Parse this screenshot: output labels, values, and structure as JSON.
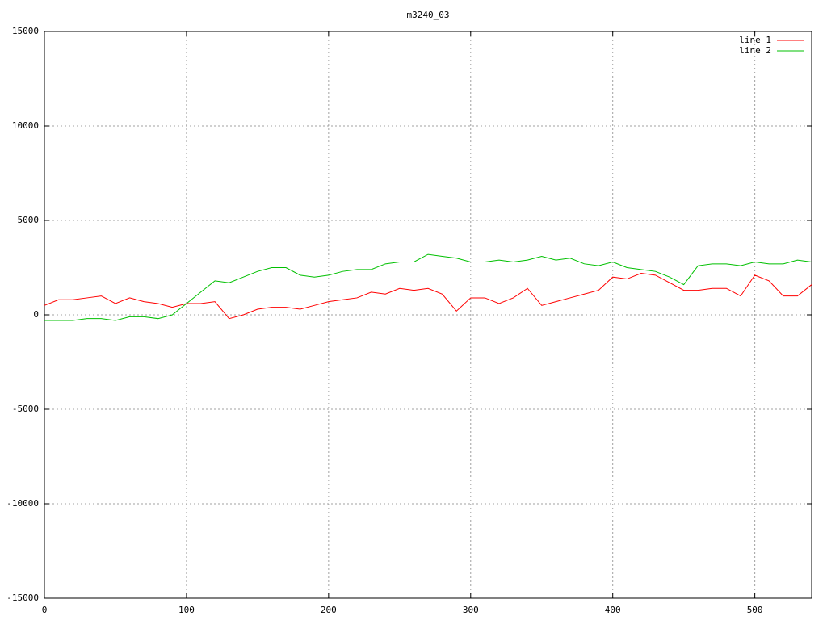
{
  "chart_data": {
    "type": "line",
    "title": "m3240_03",
    "x": [
      0,
      10,
      20,
      30,
      40,
      50,
      60,
      70,
      80,
      90,
      100,
      110,
      120,
      130,
      140,
      150,
      160,
      170,
      180,
      190,
      200,
      210,
      220,
      230,
      240,
      250,
      260,
      270,
      280,
      290,
      300,
      310,
      320,
      330,
      340,
      350,
      360,
      370,
      380,
      390,
      400,
      410,
      420,
      430,
      440,
      450,
      460,
      470,
      480,
      490,
      500,
      510,
      520,
      530,
      540
    ],
    "series": [
      {
        "name": "line 1",
        "color": "#ff0000",
        "values": [
          500,
          800,
          800,
          900,
          1000,
          600,
          900,
          700,
          600,
          400,
          600,
          600,
          700,
          -200,
          0,
          300,
          400,
          400,
          300,
          500,
          700,
          800,
          900,
          1200,
          1100,
          1400,
          1300,
          1400,
          1100,
          200,
          900,
          900,
          600,
          900,
          1400,
          500,
          700,
          900,
          1100,
          1300,
          2000,
          1900,
          2200,
          2100,
          1700,
          1300,
          1300,
          1400,
          1400,
          1000,
          2100,
          1800,
          1000,
          1000,
          1600
        ]
      },
      {
        "name": "line 2",
        "color": "#00c000",
        "values": [
          -300,
          -300,
          -300,
          -200,
          -200,
          -300,
          -100,
          -100,
          -200,
          0,
          600,
          1200,
          1800,
          1700,
          2000,
          2300,
          2500,
          2500,
          2100,
          2000,
          2100,
          2300,
          2400,
          2400,
          2700,
          2800,
          2800,
          3200,
          3100,
          3000,
          2800,
          2800,
          2900,
          2800,
          2900,
          3100,
          2900,
          3000,
          2700,
          2600,
          2800,
          2500,
          2400,
          2300,
          2000,
          1600,
          2600,
          2700,
          2700,
          2600,
          2800,
          2700,
          2700,
          2900,
          2800
        ]
      }
    ],
    "xlim": [
      0,
      540
    ],
    "ylim": [
      -15000,
      15000
    ],
    "xticks": [
      0,
      100,
      200,
      300,
      400,
      500
    ],
    "yticks": [
      -15000,
      -10000,
      -5000,
      0,
      5000,
      10000,
      15000
    ],
    "grid": true,
    "legend": "top-right"
  }
}
